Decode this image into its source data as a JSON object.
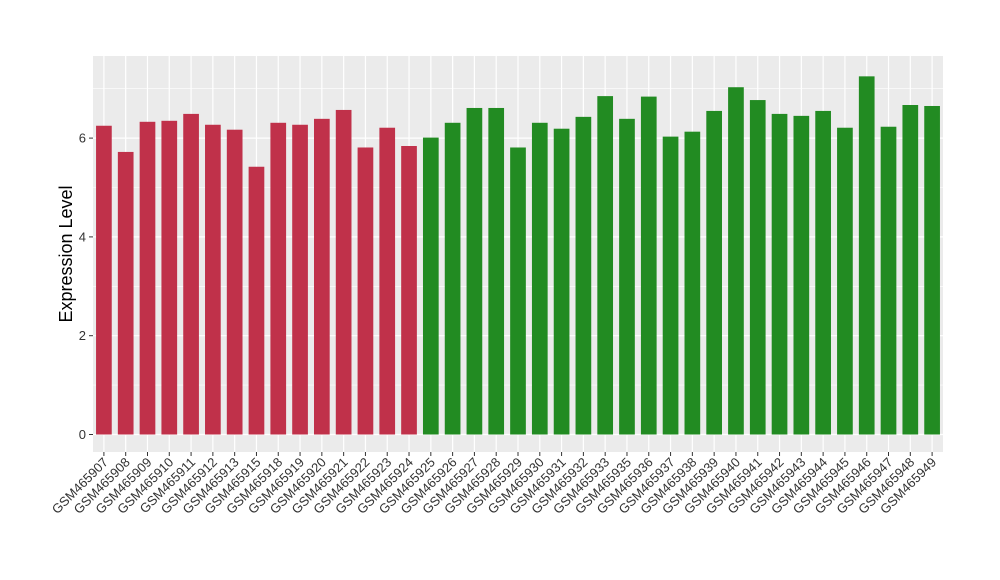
{
  "chart_data": {
    "type": "bar",
    "xlabel": "",
    "ylabel": "Expression Level",
    "ylim": [
      0,
      7.6
    ],
    "yticks": [
      "0",
      "2",
      "4",
      "6"
    ],
    "grid": true,
    "legend": "none",
    "colors": {
      "group1": "#C0314A",
      "group2": "#228B22",
      "panel_bg": "#EBEBEB",
      "grid": "#FFFFFF"
    },
    "categories": [
      "GSM465907",
      "GSM465908",
      "GSM465909",
      "GSM465910",
      "GSM465911",
      "GSM465912",
      "GSM465913",
      "GSM465915",
      "GSM465918",
      "GSM465919",
      "GSM465920",
      "GSM465921",
      "GSM465922",
      "GSM465923",
      "GSM465924",
      "GSM465925",
      "GSM465926",
      "GSM465927",
      "GSM465928",
      "GSM465929",
      "GSM465930",
      "GSM465931",
      "GSM465932",
      "GSM465933",
      "GSM465935",
      "GSM465936",
      "GSM465937",
      "GSM465938",
      "GSM465939",
      "GSM465940",
      "GSM465941",
      "GSM465942",
      "GSM465943",
      "GSM465944",
      "GSM465945",
      "GSM465946",
      "GSM465947",
      "GSM465948",
      "GSM465949"
    ],
    "values": [
      6.25,
      5.72,
      6.33,
      6.35,
      6.49,
      6.27,
      6.17,
      5.42,
      6.31,
      6.27,
      6.39,
      6.57,
      5.81,
      6.21,
      5.84,
      6.01,
      6.31,
      6.61,
      6.61,
      5.81,
      6.31,
      6.19,
      6.43,
      6.85,
      6.39,
      6.84,
      6.03,
      6.13,
      6.55,
      7.03,
      6.77,
      6.49,
      6.45,
      6.55,
      6.21,
      7.25,
      6.23,
      6.67,
      6.65
    ],
    "groups": [
      "group1",
      "group1",
      "group1",
      "group1",
      "group1",
      "group1",
      "group1",
      "group1",
      "group1",
      "group1",
      "group1",
      "group1",
      "group1",
      "group1",
      "group1",
      "group2",
      "group2",
      "group2",
      "group2",
      "group2",
      "group2",
      "group2",
      "group2",
      "group2",
      "group2",
      "group2",
      "group2",
      "group2",
      "group2",
      "group2",
      "group2",
      "group2",
      "group2",
      "group2",
      "group2",
      "group2",
      "group2",
      "group2",
      "group2"
    ]
  }
}
